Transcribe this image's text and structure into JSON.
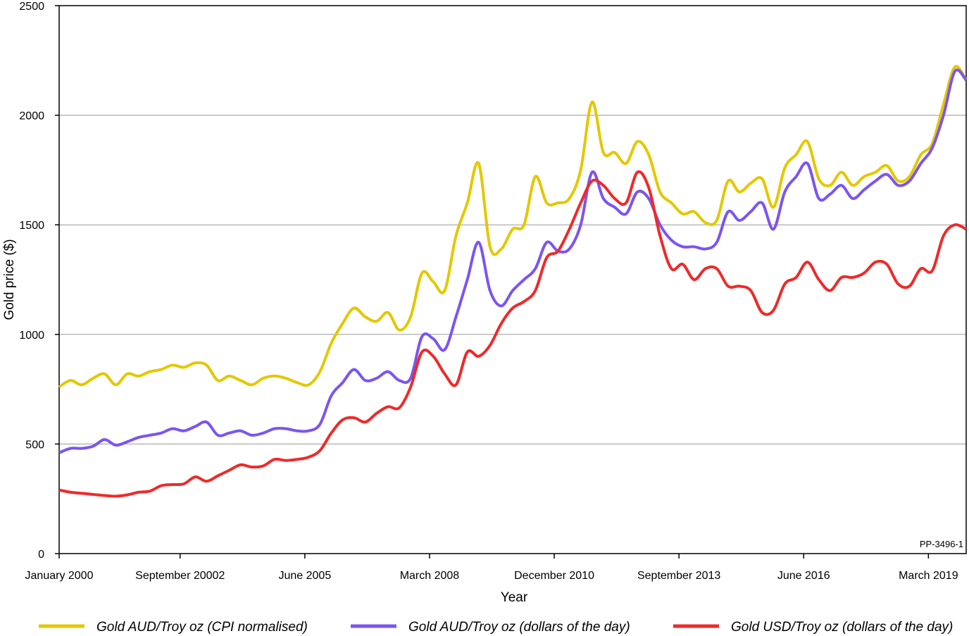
{
  "chart_data": {
    "type": "line",
    "title": "",
    "xlabel": "Year",
    "ylabel": "Gold price ($)",
    "ylim": [
      0,
      2500
    ],
    "xlim": [
      2000,
      2020
    ],
    "yticks": [
      0,
      500,
      1000,
      1500,
      2000,
      2500
    ],
    "xticks": [
      {
        "value": 2000.0,
        "label": "January 2000"
      },
      {
        "value": 2002.667,
        "label": "September 20002"
      },
      {
        "value": 2005.417,
        "label": "June 2005"
      },
      {
        "value": 2008.167,
        "label": "March 2008"
      },
      {
        "value": 2010.917,
        "label": "December 2010"
      },
      {
        "value": 2013.667,
        "label": "September 2013"
      },
      {
        "value": 2016.417,
        "label": "June 2016"
      },
      {
        "value": 2019.167,
        "label": "March 2019"
      }
    ],
    "grid": "horizontal",
    "legend_position": "bottom",
    "annotation": "PP-3496-1",
    "x_start": 2000,
    "x_step_years": 0.25,
    "series": [
      {
        "name": "Gold AUD/Troy oz (CPI normalised)",
        "color": "#e3c800",
        "values": [
          760,
          790,
          770,
          800,
          820,
          770,
          820,
          810,
          830,
          840,
          860,
          850,
          870,
          860,
          790,
          810,
          790,
          770,
          800,
          810,
          800,
          780,
          770,
          830,
          960,
          1050,
          1120,
          1080,
          1060,
          1100,
          1020,
          1080,
          1280,
          1240,
          1200,
          1450,
          1600,
          1780,
          1400,
          1390,
          1480,
          1500,
          1720,
          1600,
          1600,
          1620,
          1750,
          2060,
          1830,
          1830,
          1780,
          1880,
          1820,
          1650,
          1600,
          1550,
          1560,
          1510,
          1520,
          1700,
          1650,
          1690,
          1710,
          1580,
          1760,
          1820,
          1880,
          1710,
          1680,
          1740,
          1680,
          1720,
          1740,
          1770,
          1700,
          1720,
          1820,
          1870,
          2050,
          2220,
          2160
        ]
      },
      {
        "name": "Gold AUD/Troy oz (dollars of the day)",
        "color": "#7b55f0",
        "values": [
          460,
          480,
          480,
          490,
          520,
          495,
          510,
          530,
          540,
          550,
          570,
          560,
          580,
          600,
          540,
          550,
          560,
          540,
          550,
          570,
          570,
          560,
          560,
          590,
          720,
          780,
          840,
          790,
          800,
          830,
          790,
          800,
          990,
          980,
          930,
          1080,
          1250,
          1420,
          1200,
          1130,
          1200,
          1250,
          1300,
          1420,
          1380,
          1390,
          1500,
          1740,
          1620,
          1580,
          1550,
          1650,
          1620,
          1500,
          1430,
          1400,
          1400,
          1390,
          1420,
          1560,
          1520,
          1560,
          1600,
          1480,
          1650,
          1720,
          1780,
          1620,
          1640,
          1680,
          1620,
          1660,
          1700,
          1730,
          1680,
          1700,
          1780,
          1850,
          2000,
          2200,
          2160
        ]
      },
      {
        "name": "Gold USD/Troy oz (dollars of the day)",
        "color": "#ee2a2a",
        "values": [
          290,
          280,
          275,
          270,
          265,
          262,
          268,
          280,
          285,
          310,
          315,
          318,
          350,
          330,
          355,
          380,
          405,
          395,
          400,
          430,
          425,
          430,
          440,
          470,
          550,
          610,
          620,
          600,
          640,
          670,
          665,
          760,
          920,
          900,
          820,
          770,
          920,
          900,
          950,
          1050,
          1120,
          1150,
          1200,
          1350,
          1380,
          1480,
          1600,
          1700,
          1680,
          1620,
          1600,
          1740,
          1670,
          1450,
          1300,
          1320,
          1250,
          1300,
          1300,
          1220,
          1220,
          1200,
          1100,
          1110,
          1230,
          1260,
          1330,
          1250,
          1200,
          1260,
          1260,
          1280,
          1330,
          1320,
          1230,
          1220,
          1300,
          1290,
          1450,
          1500,
          1480
        ]
      }
    ]
  }
}
